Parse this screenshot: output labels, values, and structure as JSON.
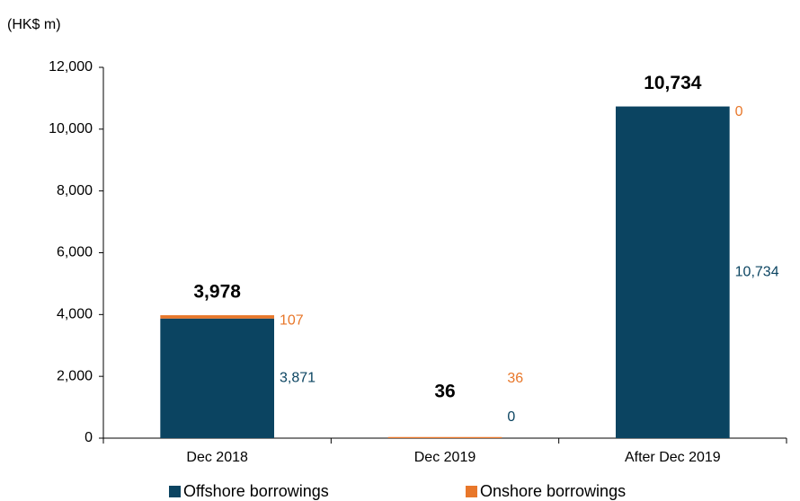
{
  "chart_data": {
    "type": "stacked_bar",
    "unit_label": "(HK$ m)",
    "categories": [
      "Dec 2018",
      "Dec 2019",
      "After Dec 2019"
    ],
    "series": [
      {
        "name": "Offshore borrowings",
        "color": "#0b4461",
        "values": [
          3871,
          0,
          10734
        ],
        "value_labels": [
          "3,871",
          "0",
          "10,734"
        ]
      },
      {
        "name": "Onshore borrowings",
        "color": "#e8772a",
        "values": [
          107,
          36,
          0
        ],
        "value_labels": [
          "107",
          "36",
          "0"
        ]
      }
    ],
    "total_labels": [
      "3,978",
      "36",
      "10,734"
    ],
    "ylim": [
      0,
      12000
    ],
    "yticks": [
      {
        "value": 0,
        "label": "0"
      },
      {
        "value": 2000,
        "label": "2,000"
      },
      {
        "value": 4000,
        "label": "4,000"
      },
      {
        "value": 6000,
        "label": "6,000"
      },
      {
        "value": 8000,
        "label": "8,000"
      },
      {
        "value": 10000,
        "label": "10,000"
      },
      {
        "value": 12000,
        "label": "12,000"
      }
    ],
    "legend": "bottom"
  }
}
